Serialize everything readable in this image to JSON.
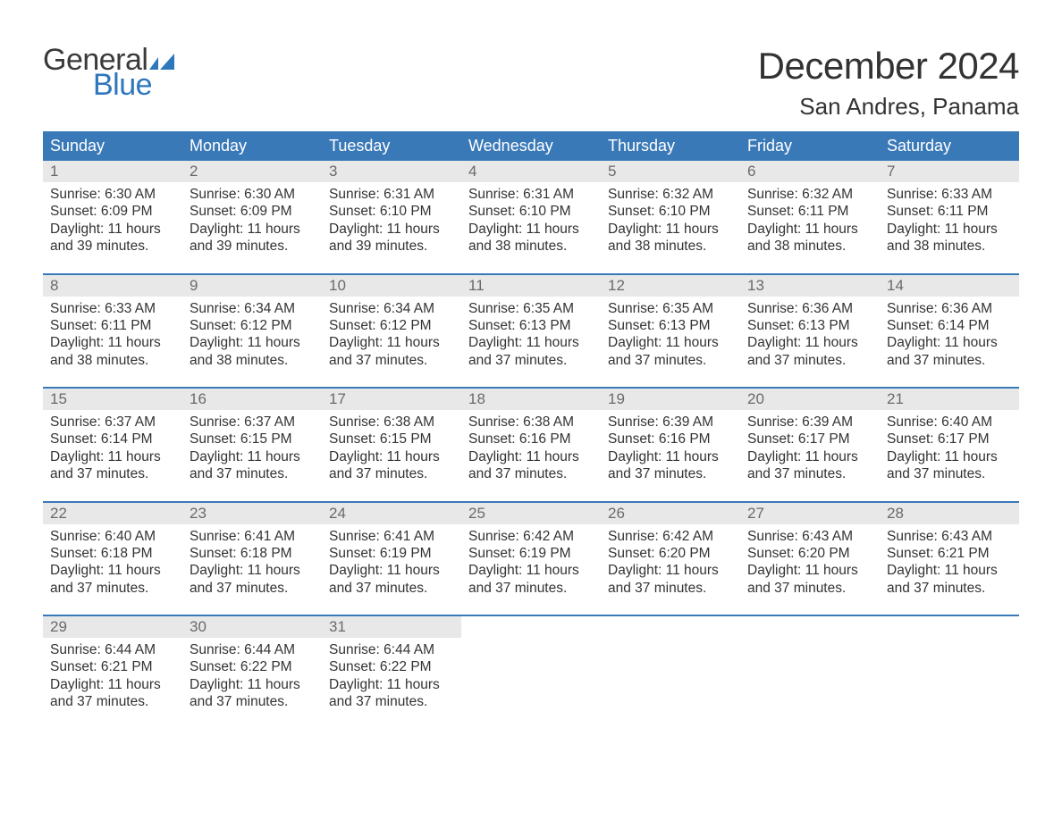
{
  "brand": {
    "word1": "General",
    "word2": "Blue",
    "tri_color": "#2f77bd"
  },
  "title": "December 2024",
  "location": "San Andres, Panama",
  "colors": {
    "header_bg": "#3a79b8",
    "header_text": "#ffffff",
    "daynum_bg": "#e8e8e8",
    "daynum_text": "#6a6a6a",
    "week_border": "#3a79b8",
    "body_text": "#333333",
    "background": "#ffffff"
  },
  "weekdays": [
    "Sunday",
    "Monday",
    "Tuesday",
    "Wednesday",
    "Thursday",
    "Friday",
    "Saturday"
  ],
  "weeks": [
    [
      {
        "n": "1",
        "sunrise": "Sunrise: 6:30 AM",
        "sunset": "Sunset: 6:09 PM",
        "d1": "Daylight: 11 hours",
        "d2": "and 39 minutes."
      },
      {
        "n": "2",
        "sunrise": "Sunrise: 6:30 AM",
        "sunset": "Sunset: 6:09 PM",
        "d1": "Daylight: 11 hours",
        "d2": "and 39 minutes."
      },
      {
        "n": "3",
        "sunrise": "Sunrise: 6:31 AM",
        "sunset": "Sunset: 6:10 PM",
        "d1": "Daylight: 11 hours",
        "d2": "and 39 minutes."
      },
      {
        "n": "4",
        "sunrise": "Sunrise: 6:31 AM",
        "sunset": "Sunset: 6:10 PM",
        "d1": "Daylight: 11 hours",
        "d2": "and 38 minutes."
      },
      {
        "n": "5",
        "sunrise": "Sunrise: 6:32 AM",
        "sunset": "Sunset: 6:10 PM",
        "d1": "Daylight: 11 hours",
        "d2": "and 38 minutes."
      },
      {
        "n": "6",
        "sunrise": "Sunrise: 6:32 AM",
        "sunset": "Sunset: 6:11 PM",
        "d1": "Daylight: 11 hours",
        "d2": "and 38 minutes."
      },
      {
        "n": "7",
        "sunrise": "Sunrise: 6:33 AM",
        "sunset": "Sunset: 6:11 PM",
        "d1": "Daylight: 11 hours",
        "d2": "and 38 minutes."
      }
    ],
    [
      {
        "n": "8",
        "sunrise": "Sunrise: 6:33 AM",
        "sunset": "Sunset: 6:11 PM",
        "d1": "Daylight: 11 hours",
        "d2": "and 38 minutes."
      },
      {
        "n": "9",
        "sunrise": "Sunrise: 6:34 AM",
        "sunset": "Sunset: 6:12 PM",
        "d1": "Daylight: 11 hours",
        "d2": "and 38 minutes."
      },
      {
        "n": "10",
        "sunrise": "Sunrise: 6:34 AM",
        "sunset": "Sunset: 6:12 PM",
        "d1": "Daylight: 11 hours",
        "d2": "and 37 minutes."
      },
      {
        "n": "11",
        "sunrise": "Sunrise: 6:35 AM",
        "sunset": "Sunset: 6:13 PM",
        "d1": "Daylight: 11 hours",
        "d2": "and 37 minutes."
      },
      {
        "n": "12",
        "sunrise": "Sunrise: 6:35 AM",
        "sunset": "Sunset: 6:13 PM",
        "d1": "Daylight: 11 hours",
        "d2": "and 37 minutes."
      },
      {
        "n": "13",
        "sunrise": "Sunrise: 6:36 AM",
        "sunset": "Sunset: 6:13 PM",
        "d1": "Daylight: 11 hours",
        "d2": "and 37 minutes."
      },
      {
        "n": "14",
        "sunrise": "Sunrise: 6:36 AM",
        "sunset": "Sunset: 6:14 PM",
        "d1": "Daylight: 11 hours",
        "d2": "and 37 minutes."
      }
    ],
    [
      {
        "n": "15",
        "sunrise": "Sunrise: 6:37 AM",
        "sunset": "Sunset: 6:14 PM",
        "d1": "Daylight: 11 hours",
        "d2": "and 37 minutes."
      },
      {
        "n": "16",
        "sunrise": "Sunrise: 6:37 AM",
        "sunset": "Sunset: 6:15 PM",
        "d1": "Daylight: 11 hours",
        "d2": "and 37 minutes."
      },
      {
        "n": "17",
        "sunrise": "Sunrise: 6:38 AM",
        "sunset": "Sunset: 6:15 PM",
        "d1": "Daylight: 11 hours",
        "d2": "and 37 minutes."
      },
      {
        "n": "18",
        "sunrise": "Sunrise: 6:38 AM",
        "sunset": "Sunset: 6:16 PM",
        "d1": "Daylight: 11 hours",
        "d2": "and 37 minutes."
      },
      {
        "n": "19",
        "sunrise": "Sunrise: 6:39 AM",
        "sunset": "Sunset: 6:16 PM",
        "d1": "Daylight: 11 hours",
        "d2": "and 37 minutes."
      },
      {
        "n": "20",
        "sunrise": "Sunrise: 6:39 AM",
        "sunset": "Sunset: 6:17 PM",
        "d1": "Daylight: 11 hours",
        "d2": "and 37 minutes."
      },
      {
        "n": "21",
        "sunrise": "Sunrise: 6:40 AM",
        "sunset": "Sunset: 6:17 PM",
        "d1": "Daylight: 11 hours",
        "d2": "and 37 minutes."
      }
    ],
    [
      {
        "n": "22",
        "sunrise": "Sunrise: 6:40 AM",
        "sunset": "Sunset: 6:18 PM",
        "d1": "Daylight: 11 hours",
        "d2": "and 37 minutes."
      },
      {
        "n": "23",
        "sunrise": "Sunrise: 6:41 AM",
        "sunset": "Sunset: 6:18 PM",
        "d1": "Daylight: 11 hours",
        "d2": "and 37 minutes."
      },
      {
        "n": "24",
        "sunrise": "Sunrise: 6:41 AM",
        "sunset": "Sunset: 6:19 PM",
        "d1": "Daylight: 11 hours",
        "d2": "and 37 minutes."
      },
      {
        "n": "25",
        "sunrise": "Sunrise: 6:42 AM",
        "sunset": "Sunset: 6:19 PM",
        "d1": "Daylight: 11 hours",
        "d2": "and 37 minutes."
      },
      {
        "n": "26",
        "sunrise": "Sunrise: 6:42 AM",
        "sunset": "Sunset: 6:20 PM",
        "d1": "Daylight: 11 hours",
        "d2": "and 37 minutes."
      },
      {
        "n": "27",
        "sunrise": "Sunrise: 6:43 AM",
        "sunset": "Sunset: 6:20 PM",
        "d1": "Daylight: 11 hours",
        "d2": "and 37 minutes."
      },
      {
        "n": "28",
        "sunrise": "Sunrise: 6:43 AM",
        "sunset": "Sunset: 6:21 PM",
        "d1": "Daylight: 11 hours",
        "d2": "and 37 minutes."
      }
    ],
    [
      {
        "n": "29",
        "sunrise": "Sunrise: 6:44 AM",
        "sunset": "Sunset: 6:21 PM",
        "d1": "Daylight: 11 hours",
        "d2": "and 37 minutes."
      },
      {
        "n": "30",
        "sunrise": "Sunrise: 6:44 AM",
        "sunset": "Sunset: 6:22 PM",
        "d1": "Daylight: 11 hours",
        "d2": "and 37 minutes."
      },
      {
        "n": "31",
        "sunrise": "Sunrise: 6:44 AM",
        "sunset": "Sunset: 6:22 PM",
        "d1": "Daylight: 11 hours",
        "d2": "and 37 minutes."
      },
      {
        "empty": true
      },
      {
        "empty": true
      },
      {
        "empty": true
      },
      {
        "empty": true
      }
    ]
  ]
}
